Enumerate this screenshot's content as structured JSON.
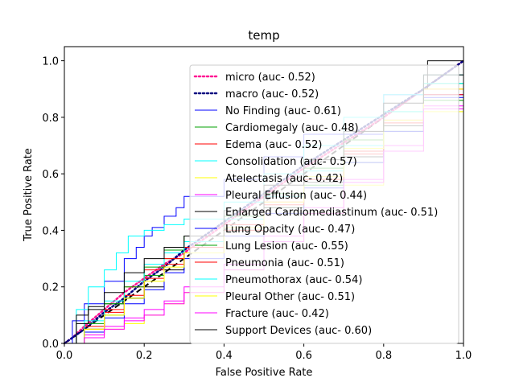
{
  "chart_data": {
    "type": "line",
    "title": "temp",
    "xlabel": "False Positive Rate",
    "ylabel": "True Positive Rate",
    "xlim": [
      0,
      1
    ],
    "ylim": [
      0,
      1.05
    ],
    "xticks": [
      "0.0",
      "0.2",
      "0.4",
      "0.6",
      "0.8",
      "1.0"
    ],
    "yticks": [
      "0.0",
      "0.2",
      "0.4",
      "0.6",
      "0.8",
      "1.0"
    ],
    "legend_position": "top-right",
    "series": [
      {
        "name": "micro (auc- 0.52)",
        "color": "#ff1493",
        "style": "dotted",
        "x": [
          0,
          0.02,
          0.05,
          0.1,
          0.15,
          0.2,
          0.25,
          0.3,
          0.35,
          0.4,
          0.5,
          0.6,
          0.7,
          0.8,
          0.9,
          1
        ],
        "y": [
          0,
          0.02,
          0.06,
          0.12,
          0.18,
          0.23,
          0.28,
          0.32,
          0.37,
          0.42,
          0.52,
          0.62,
          0.71,
          0.8,
          0.9,
          1
        ]
      },
      {
        "name": "macro (auc- 0.52)",
        "color": "#000080",
        "style": "dotted",
        "x": [
          0,
          0.02,
          0.05,
          0.1,
          0.15,
          0.2,
          0.25,
          0.3,
          0.35,
          0.4,
          0.5,
          0.6,
          0.7,
          0.8,
          0.9,
          1
        ],
        "y": [
          0,
          0.02,
          0.05,
          0.11,
          0.16,
          0.22,
          0.27,
          0.33,
          0.38,
          0.43,
          0.53,
          0.63,
          0.72,
          0.81,
          0.9,
          1
        ]
      },
      {
        "name": "No Finding (auc- 0.61)",
        "color": "#0000ff",
        "style": "solid",
        "x": [
          0,
          0.02,
          0.05,
          0.1,
          0.15,
          0.18,
          0.2,
          0.22,
          0.25,
          0.28,
          0.3,
          0.4,
          0.5,
          0.6,
          0.8,
          1
        ],
        "y": [
          0,
          0.08,
          0.14,
          0.22,
          0.3,
          0.34,
          0.38,
          0.41,
          0.45,
          0.48,
          0.52,
          0.58,
          0.66,
          0.74,
          0.88,
          1
        ]
      },
      {
        "name": "Cardiomegaly (auc- 0.48)",
        "color": "#00a000",
        "style": "solid",
        "x": [
          0,
          0.05,
          0.1,
          0.15,
          0.2,
          0.25,
          0.3,
          0.4,
          0.5,
          0.6,
          0.7,
          0.8,
          0.9,
          1
        ],
        "y": [
          0,
          0.05,
          0.1,
          0.16,
          0.24,
          0.3,
          0.34,
          0.4,
          0.48,
          0.56,
          0.64,
          0.75,
          0.86,
          1
        ]
      },
      {
        "name": "Edema (auc- 0.52)",
        "color": "#ff0000",
        "style": "solid",
        "x": [
          0,
          0.05,
          0.1,
          0.15,
          0.2,
          0.25,
          0.3,
          0.4,
          0.5,
          0.6,
          0.7,
          0.8,
          0.9,
          1
        ],
        "y": [
          0,
          0.06,
          0.12,
          0.2,
          0.26,
          0.3,
          0.34,
          0.42,
          0.5,
          0.58,
          0.67,
          0.78,
          0.88,
          1
        ]
      },
      {
        "name": "Consolidation (auc- 0.57)",
        "color": "#00ffff",
        "style": "solid",
        "x": [
          0,
          0.03,
          0.06,
          0.1,
          0.13,
          0.16,
          0.2,
          0.25,
          0.3,
          0.4,
          0.5,
          0.6,
          0.7,
          0.8,
          0.9,
          1
        ],
        "y": [
          0,
          0.12,
          0.2,
          0.26,
          0.32,
          0.38,
          0.4,
          0.42,
          0.44,
          0.5,
          0.6,
          0.7,
          0.8,
          0.88,
          0.95,
          1
        ]
      },
      {
        "name": "Atelectasis (auc- 0.42)",
        "color": "#ffff00",
        "style": "solid",
        "x": [
          0,
          0.05,
          0.1,
          0.15,
          0.2,
          0.25,
          0.3,
          0.4,
          0.5,
          0.6,
          0.7,
          0.8,
          0.9,
          1
        ],
        "y": [
          0,
          0.02,
          0.05,
          0.07,
          0.1,
          0.14,
          0.18,
          0.26,
          0.36,
          0.46,
          0.56,
          0.68,
          0.82,
          1
        ]
      },
      {
        "name": "Pleural Effusion (auc- 0.44)",
        "color": "#ff00ff",
        "style": "solid",
        "x": [
          0,
          0.05,
          0.1,
          0.15,
          0.2,
          0.25,
          0.3,
          0.4,
          0.5,
          0.6,
          0.7,
          0.8,
          0.9,
          1
        ],
        "y": [
          0,
          0.03,
          0.06,
          0.09,
          0.12,
          0.15,
          0.2,
          0.28,
          0.38,
          0.48,
          0.58,
          0.7,
          0.84,
          1
        ]
      },
      {
        "name": "Enlarged Cardiomediastinum (auc- 0.51)",
        "color": "#000000",
        "style": "solid",
        "x": [
          0,
          0.03,
          0.06,
          0.1,
          0.15,
          0.2,
          0.25,
          0.3,
          0.4,
          0.5,
          0.6,
          0.7,
          0.8,
          0.9,
          0.91,
          1
        ],
        "y": [
          0,
          0.1,
          0.13,
          0.14,
          0.16,
          0.2,
          0.26,
          0.32,
          0.4,
          0.48,
          0.57,
          0.66,
          0.77,
          0.9,
          1.0,
          1.0
        ]
      },
      {
        "name": "Lung Opacity (auc- 0.47)",
        "color": "#0000ff",
        "style": "solid",
        "x": [
          0,
          0.05,
          0.1,
          0.15,
          0.2,
          0.25,
          0.3,
          0.4,
          0.5,
          0.6,
          0.7,
          0.8,
          0.9,
          1
        ],
        "y": [
          0,
          0.04,
          0.09,
          0.14,
          0.19,
          0.25,
          0.3,
          0.38,
          0.46,
          0.55,
          0.64,
          0.75,
          0.87,
          1
        ]
      },
      {
        "name": "Lung Lesion (auc- 0.55)",
        "color": "#00a000",
        "style": "solid",
        "x": [
          0,
          0.05,
          0.1,
          0.15,
          0.2,
          0.25,
          0.3,
          0.4,
          0.5,
          0.6,
          0.7,
          0.8,
          0.9,
          1
        ],
        "y": [
          0,
          0.07,
          0.14,
          0.2,
          0.27,
          0.33,
          0.38,
          0.45,
          0.53,
          0.62,
          0.72,
          0.82,
          0.92,
          1
        ]
      },
      {
        "name": "Pneumonia (auc- 0.51)",
        "color": "#ff0000",
        "style": "solid",
        "x": [
          0,
          0.05,
          0.1,
          0.15,
          0.2,
          0.25,
          0.3,
          0.4,
          0.5,
          0.6,
          0.7,
          0.8,
          0.9,
          1
        ],
        "y": [
          0,
          0.05,
          0.11,
          0.17,
          0.23,
          0.28,
          0.32,
          0.4,
          0.49,
          0.58,
          0.68,
          0.79,
          0.9,
          1
        ]
      },
      {
        "name": "Pneumothorax (auc- 0.54)",
        "color": "#00ffff",
        "style": "solid",
        "x": [
          0,
          0.05,
          0.1,
          0.15,
          0.2,
          0.25,
          0.3,
          0.4,
          0.5,
          0.6,
          0.7,
          0.8,
          0.9,
          1
        ],
        "y": [
          0,
          0.08,
          0.15,
          0.22,
          0.28,
          0.32,
          0.36,
          0.44,
          0.52,
          0.61,
          0.7,
          0.82,
          0.92,
          1
        ]
      },
      {
        "name": "Pleural Other (auc- 0.51)",
        "color": "#ffff00",
        "style": "solid",
        "x": [
          0,
          0.05,
          0.1,
          0.15,
          0.2,
          0.25,
          0.3,
          0.4,
          0.5,
          0.6,
          0.7,
          0.8,
          0.9,
          1
        ],
        "y": [
          0,
          0.05,
          0.1,
          0.16,
          0.22,
          0.27,
          0.32,
          0.41,
          0.5,
          0.59,
          0.69,
          0.79,
          0.9,
          1
        ]
      },
      {
        "name": "Fracture (auc- 0.42)",
        "color": "#ff00ff",
        "style": "solid",
        "x": [
          0,
          0.05,
          0.1,
          0.15,
          0.2,
          0.25,
          0.3,
          0.4,
          0.5,
          0.6,
          0.7,
          0.8,
          0.9,
          1
        ],
        "y": [
          0,
          0.02,
          0.05,
          0.08,
          0.1,
          0.14,
          0.18,
          0.26,
          0.36,
          0.46,
          0.57,
          0.68,
          0.83,
          1
        ]
      },
      {
        "name": "Support Devices (auc- 0.60)",
        "color": "#000000",
        "style": "solid",
        "x": [
          0,
          0.03,
          0.06,
          0.1,
          0.15,
          0.2,
          0.25,
          0.3,
          0.4,
          0.5,
          0.6,
          0.7,
          0.8,
          0.9,
          1
        ],
        "y": [
          0,
          0.07,
          0.12,
          0.18,
          0.25,
          0.3,
          0.34,
          0.38,
          0.47,
          0.56,
          0.65,
          0.75,
          0.85,
          0.95,
          1
        ]
      }
    ],
    "reference_line": {
      "x": [
        0,
        1
      ],
      "y": [
        0,
        1
      ],
      "color": "#000000",
      "style": "dashed"
    }
  }
}
